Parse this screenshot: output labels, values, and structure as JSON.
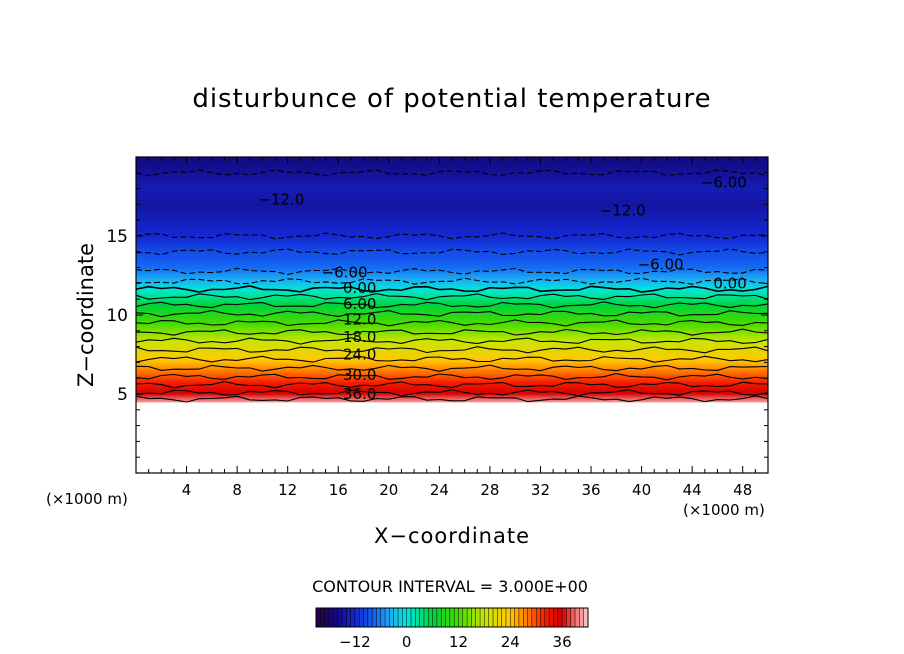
{
  "chart_data": {
    "type": "heatmap",
    "title": "disturbunce of potential temperature",
    "xlabel": "X−coordinate",
    "ylabel": "Z−coordinate",
    "x_unit": "(×1000 m)",
    "y_unit": "(×1000 m)",
    "xlim": [
      0,
      50
    ],
    "ylim": [
      0,
      20
    ],
    "x_ticks": [
      4,
      8,
      12,
      16,
      20,
      24,
      28,
      32,
      36,
      40,
      44,
      48
    ],
    "y_ticks": [
      5,
      10,
      15
    ],
    "contour_interval_label": "CONTOUR INTERVAL = 3.000E+00",
    "colorbar": {
      "range": [
        -21,
        42
      ],
      "ticks": [
        -12,
        0,
        12,
        24,
        36
      ],
      "tick_labels": [
        "−12",
        "0",
        "12",
        "24",
        "36"
      ]
    },
    "colors": {
      "background": "#ffffff",
      "frame": "#000000",
      "negative_contour": "#000000"
    },
    "contour_labels": [
      {
        "text": "−12.0",
        "x": 11.5,
        "z": 17.3
      },
      {
        "text": "−12.0",
        "x": 38.5,
        "z": 16.6
      },
      {
        "text": "−6.00",
        "x": 46.5,
        "z": 18.4
      },
      {
        "text": "−6.00",
        "x": 41.5,
        "z": 13.2
      },
      {
        "text": "−6.00",
        "x": 16.5,
        "z": 12.7
      },
      {
        "text": "0.00",
        "x": 17.7,
        "z": 11.7
      },
      {
        "text": "0.00",
        "x": 47.0,
        "z": 12.0
      },
      {
        "text": "6.00",
        "x": 17.7,
        "z": 10.7
      },
      {
        "text": "12.0",
        "x": 17.7,
        "z": 9.7
      },
      {
        "text": "18.0",
        "x": 17.7,
        "z": 8.6
      },
      {
        "text": "24.0",
        "x": 17.7,
        "z": 7.5
      },
      {
        "text": "30.0",
        "x": 17.7,
        "z": 6.2
      },
      {
        "text": "36.0",
        "x": 17.7,
        "z": 5.0
      }
    ],
    "profile": {
      "description_values_z": [
        4.5,
        5.0,
        6.0,
        7.0,
        8.0,
        9.0,
        10.0,
        11.0,
        11.8,
        12.3,
        13.0,
        14.0,
        15.0,
        16.0,
        17.0,
        18.0,
        19.0,
        20.0
      ],
      "theta_prime": [
        40.5,
        36.5,
        30.5,
        25.0,
        20.0,
        14.5,
        9.5,
        4.0,
        -1.0,
        -4.0,
        -7.0,
        -9.0,
        -12.0,
        -13.0,
        -14.5,
        -13.5,
        -15.0,
        -16.0
      ]
    }
  }
}
